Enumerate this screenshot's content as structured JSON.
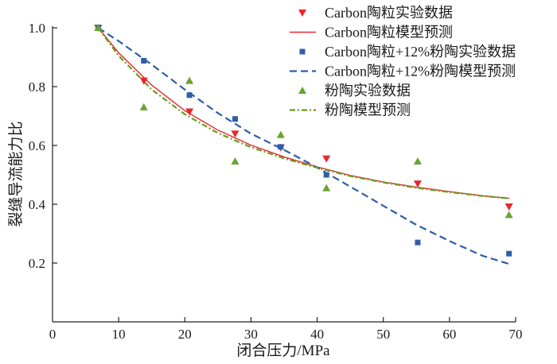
{
  "chart_data": {
    "type": "scatter",
    "xlabel": "闭合压力/MPa",
    "ylabel": "裂缝导流能力比",
    "xlim": [
      0,
      70
    ],
    "ylim": [
      0,
      1.0
    ],
    "xticks": [
      "0",
      "10",
      "20",
      "30",
      "40",
      "50",
      "60",
      "70"
    ],
    "yticks": [
      "0.2",
      "0.4",
      "0.6",
      "0.8",
      "1.0"
    ],
    "legend_position": "top-right",
    "grid": false,
    "series": [
      {
        "name": "Carbon陶粒实验数据",
        "kind": "points",
        "marker": "triangle-down",
        "color": "#e8262b",
        "x": [
          6.9,
          13.8,
          20.7,
          27.6,
          34.5,
          41.4,
          55.2,
          69.0
        ],
        "y": [
          1.0,
          0.82,
          0.715,
          0.64,
          0.593,
          0.555,
          0.47,
          0.392
        ]
      },
      {
        "name": "Carbon陶粒模型预测",
        "kind": "line",
        "dash": "solid",
        "color": "#e8262b",
        "x": [
          6.9,
          10,
          15,
          20,
          25,
          30,
          35,
          40,
          45,
          50,
          55,
          60,
          65,
          69.0
        ],
        "y": [
          1.0,
          0.915,
          0.805,
          0.718,
          0.652,
          0.601,
          0.561,
          0.527,
          0.498,
          0.476,
          0.458,
          0.443,
          0.429,
          0.42
        ]
      },
      {
        "name": "Carbon陶粒+12%粉陶实验数据",
        "kind": "points",
        "marker": "square",
        "color": "#2f5da8",
        "x": [
          6.9,
          13.8,
          20.7,
          27.6,
          34.5,
          41.4,
          55.2,
          69.0
        ],
        "y": [
          1.0,
          0.888,
          0.771,
          0.69,
          0.595,
          0.5,
          0.27,
          0.232
        ]
      },
      {
        "name": "Carbon陶粒+12%粉陶模型预测",
        "kind": "line",
        "dash": "dashed",
        "color": "#2f5da8",
        "x": [
          6.9,
          10,
          15,
          20,
          25,
          30,
          35,
          40,
          45,
          50,
          55,
          60,
          65,
          69.0
        ],
        "y": [
          1.0,
          0.955,
          0.875,
          0.79,
          0.71,
          0.64,
          0.585,
          0.525,
          0.46,
          0.395,
          0.33,
          0.275,
          0.225,
          0.197
        ]
      },
      {
        "name": "粉陶实验数据",
        "kind": "points",
        "marker": "triangle-up",
        "color": "#6aa232",
        "x": [
          6.9,
          13.8,
          20.7,
          27.6,
          34.5,
          41.4,
          55.2,
          69.0
        ],
        "y": [
          1.0,
          0.73,
          0.82,
          0.546,
          0.636,
          0.455,
          0.546,
          0.364
        ]
      },
      {
        "name": "粉陶模型预测",
        "kind": "line",
        "dash": "dash-dot",
        "color": "#6a9a1f",
        "x": [
          6.9,
          10,
          15,
          20,
          25,
          30,
          35,
          40,
          45,
          50,
          55,
          60,
          65,
          69.0
        ],
        "y": [
          1.0,
          0.905,
          0.79,
          0.706,
          0.642,
          0.594,
          0.556,
          0.524,
          0.496,
          0.474,
          0.456,
          0.441,
          0.428,
          0.42
        ]
      }
    ]
  }
}
